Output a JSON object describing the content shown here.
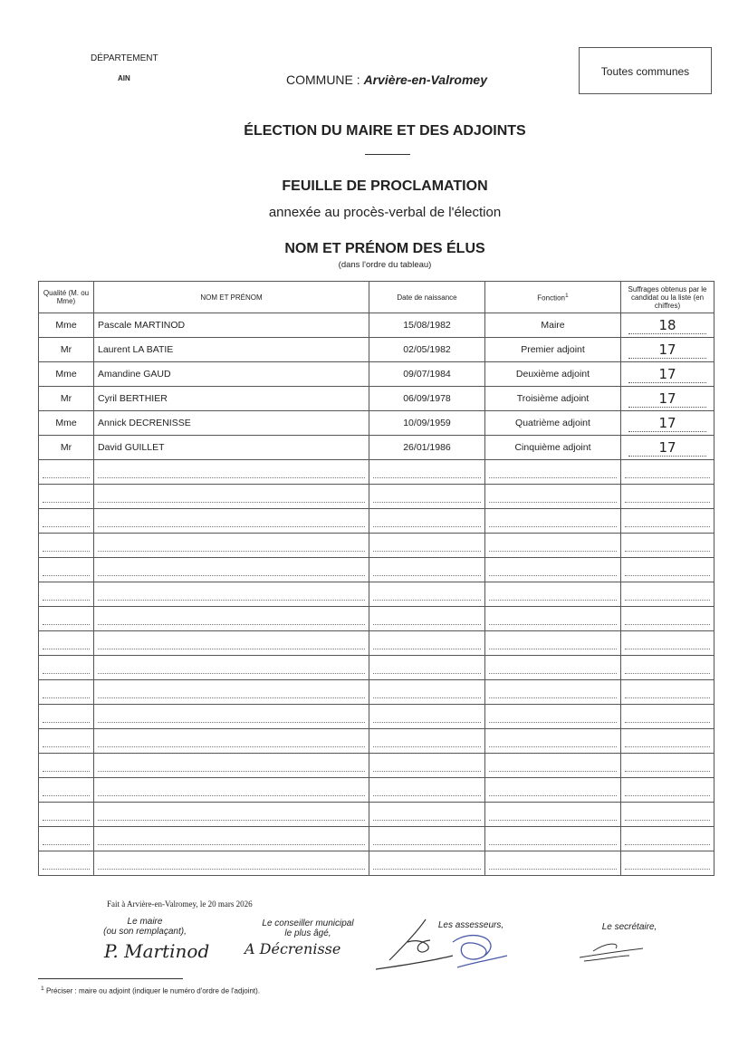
{
  "header": {
    "departement_label": "DÉPARTEMENT",
    "departement_value": "AIN",
    "commune_label": "COMMUNE :",
    "commune_value": "Arvière-en-Valromey",
    "box_label": "Toutes communes"
  },
  "titles": {
    "main": "ÉLECTION DU MAIRE ET DES ADJOINTS",
    "sheet": "FEUILLE DE PROCLAMATION",
    "sheet_sub": "annexée au procès-verbal de l'élection",
    "section": "NOM ET PRÉNOM DES ÉLUS",
    "section_sub": "(dans l'ordre du tableau)"
  },
  "table": {
    "headers": [
      "Qualité (M. ou Mme)",
      "NOM ET PRÉNOM",
      "Date de naissance",
      "Fonction",
      "Suffrages obtenus par le candidat ou la liste (en chiffres)"
    ],
    "footnote_mark": "1",
    "rows": [
      {
        "qualite": "Mme",
        "nom": "Pascale MARTINOD",
        "date": "15/08/1982",
        "fonction": "Maire",
        "suffrages": "18"
      },
      {
        "qualite": "Mr",
        "nom": "Laurent LA BATIE",
        "date": "02/05/1982",
        "fonction": "Premier adjoint",
        "suffrages": "17"
      },
      {
        "qualite": "Mme",
        "nom": "Amandine GAUD",
        "date": "09/07/1984",
        "fonction": "Deuxième adjoint",
        "suffrages": "17"
      },
      {
        "qualite": "Mr",
        "nom": "Cyril BERTHIER",
        "date": "06/09/1978",
        "fonction": "Troisième adjoint",
        "suffrages": "17"
      },
      {
        "qualite": "Mme",
        "nom": "Annick DECRENISSE",
        "date": "10/09/1959",
        "fonction": "Quatrième adjoint",
        "suffrages": "17"
      },
      {
        "qualite": "Mr",
        "nom": "David GUILLET",
        "date": "26/01/1986",
        "fonction": "Cinquième adjoint",
        "suffrages": "17"
      }
    ],
    "empty_rows": 17
  },
  "footer": {
    "place_date": "Fait à Arvière-en-Valromey, le 20 mars 2026",
    "maire": "Le maire",
    "maire_sub": "(ou son remplaçant),",
    "conseiller": "Le conseiller municipal",
    "conseiller_sub": "le plus âgé,",
    "assesseurs": "Les assesseurs,",
    "secretaire": "Le secrétaire,",
    "footnote": "Préciser : maire ou adjoint (indiquer le numéro d'ordre de l'adjoint).",
    "signature_maire": "P. Martinod",
    "signature_conseiller": "A Décrenisse"
  }
}
